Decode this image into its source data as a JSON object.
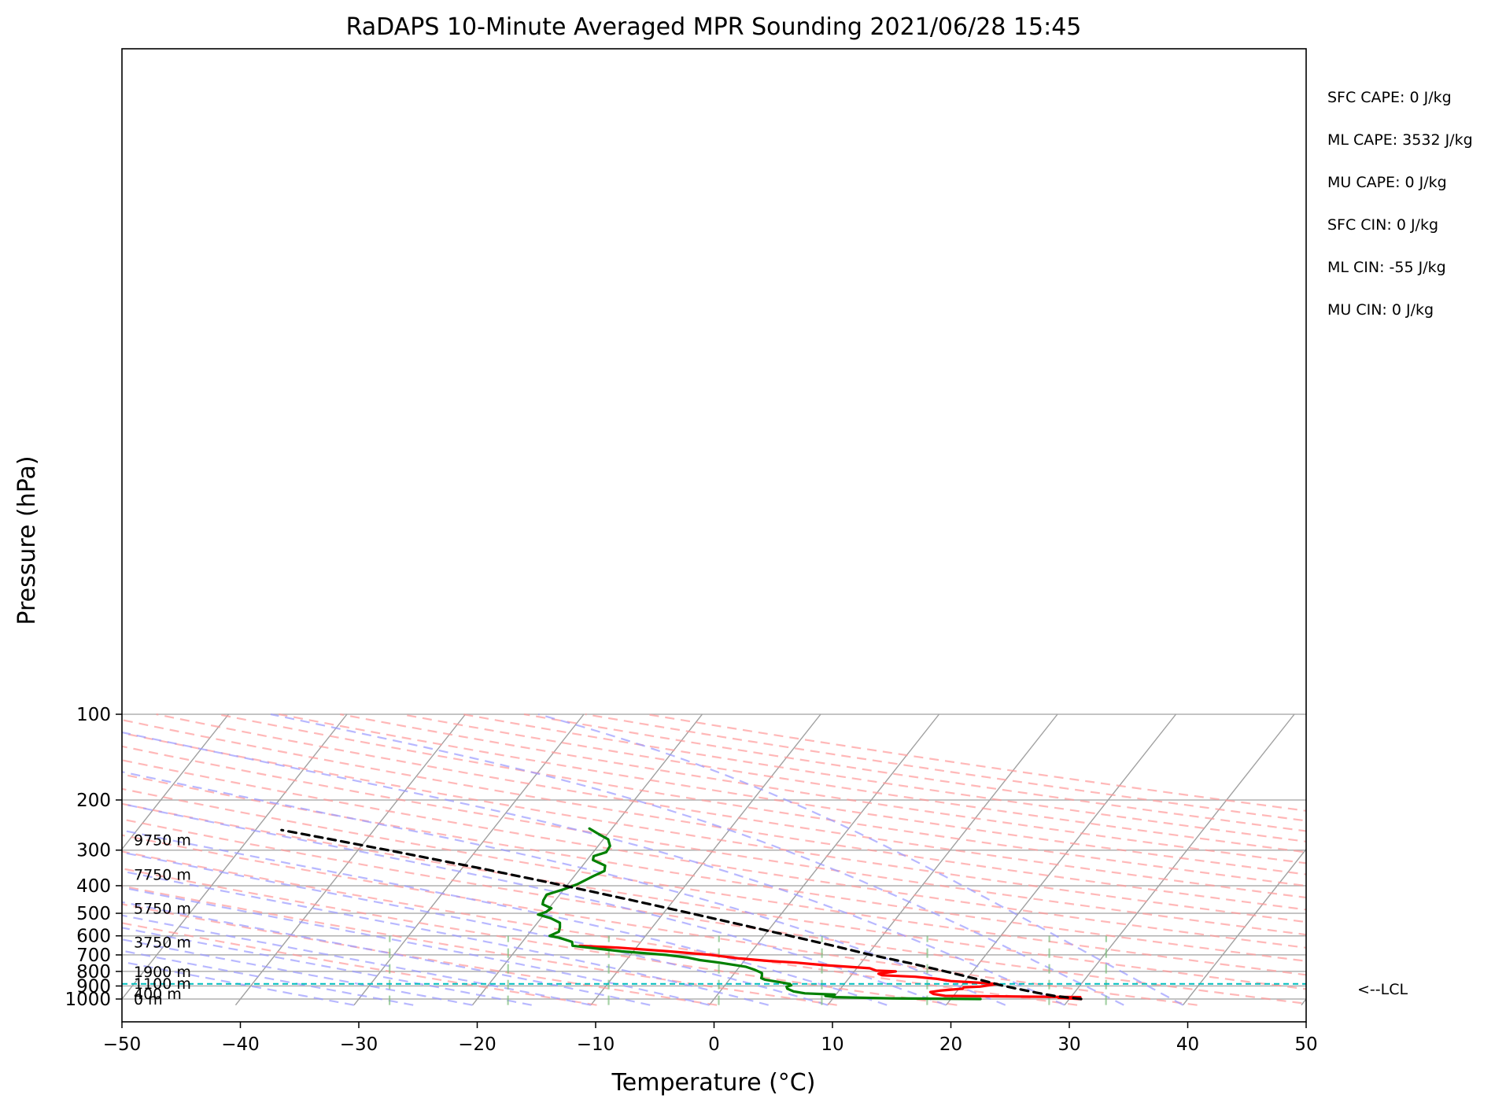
{
  "chart_data": {
    "type": "line",
    "subtype": "skew-t log-p sounding",
    "title": "RaDAPS 10-Minute Averaged MPR Sounding 2021/06/28 15:45",
    "xlabel": "Temperature (°C)",
    "ylabel": "Pressure (hPa)",
    "xlim": [
      -50,
      50
    ],
    "ylim": [
      1050,
      100
    ],
    "y_scale": "log",
    "x_ticks": [
      -50,
      -40,
      -30,
      -20,
      -10,
      0,
      10,
      20,
      30,
      40,
      50
    ],
    "x_tick_labels": [
      "−50",
      "−40",
      "−30",
      "−20",
      "−10",
      "0",
      "10",
      "20",
      "30",
      "40",
      "50"
    ],
    "y_ticks": [
      100,
      200,
      300,
      400,
      500,
      600,
      700,
      800,
      900,
      1000
    ],
    "y_tick_labels": [
      "100",
      "200",
      "300",
      "400",
      "500",
      "600",
      "700",
      "800",
      "900",
      "1000"
    ],
    "grid": true,
    "background_lines": {
      "isotherms": {
        "color": "#a0a0a0",
        "style": "solid"
      },
      "dry_adiabats": {
        "color": "#ff9a9a",
        "style": "dashed",
        "theta_K": [
          260,
          270,
          280,
          290,
          300,
          310,
          320,
          330,
          340,
          350,
          360,
          370,
          380,
          390,
          400,
          410,
          420,
          430,
          440,
          450,
          460,
          470,
          480
        ]
      },
      "moist_adiabats": {
        "color": "#9a9aff",
        "style": "dashed",
        "start_temps_C": [
          -30,
          -25,
          -20,
          -15,
          -10,
          -5,
          0,
          5,
          10,
          15,
          20,
          25,
          30,
          35,
          40
        ]
      },
      "mixing_ratio_lines": {
        "color": "#80c080",
        "style": "dashed",
        "top_hPa": 600
      }
    },
    "colors": {
      "temperature": "#ff0000",
      "dewpoint": "#008000",
      "parcel": "#000000",
      "lcl": "#00bfbf"
    },
    "series": [
      {
        "key": "temperature",
        "points": [
          [
            1000,
            31.0
          ],
          [
            990,
            29.0
          ],
          [
            985,
            30.8
          ],
          [
            975,
            19.3
          ],
          [
            960,
            18.2
          ],
          [
            945,
            17.8
          ],
          [
            935,
            18.5
          ],
          [
            920,
            20.3
          ],
          [
            910,
            20.3
          ],
          [
            905,
            21.6
          ],
          [
            895,
            22.3
          ],
          [
            885,
            22.9
          ],
          [
            875,
            21.0
          ],
          [
            865,
            18.8
          ],
          [
            850,
            17.5
          ],
          [
            835,
            15.5
          ],
          [
            825,
            12.6
          ],
          [
            815,
            12.2
          ],
          [
            808,
            12.8
          ],
          [
            800,
            13.5
          ],
          [
            795,
            11.8
          ],
          [
            780,
            11.1
          ],
          [
            760,
            7.0
          ],
          [
            745,
            4.5
          ],
          [
            735,
            2.1
          ],
          [
            720,
            -0.6
          ],
          [
            700,
            -3.2
          ],
          [
            680,
            -7.0
          ],
          [
            660,
            -11.5
          ],
          [
            650,
            -14.9
          ]
        ]
      },
      {
        "key": "dewpoint",
        "points": [
          [
            1000,
            22.5
          ],
          [
            995,
            15.0
          ],
          [
            985,
            10.1
          ],
          [
            975,
            9.2
          ],
          [
            965,
            9.9
          ],
          [
            955,
            7.3
          ],
          [
            940,
            6.2
          ],
          [
            920,
            5.5
          ],
          [
            905,
            5.3
          ],
          [
            895,
            5.6
          ],
          [
            885,
            5.4
          ],
          [
            870,
            4.2
          ],
          [
            855,
            3.0
          ],
          [
            845,
            2.6
          ],
          [
            830,
            2.5
          ],
          [
            810,
            2.3
          ],
          [
            790,
            1.5
          ],
          [
            770,
            0.5
          ],
          [
            745,
            -2.0
          ],
          [
            730,
            -3.8
          ],
          [
            715,
            -5.0
          ],
          [
            700,
            -7.0
          ],
          [
            680,
            -11.0
          ],
          [
            660,
            -14.0
          ],
          [
            650,
            -15.5
          ],
          [
            630,
            -15.8
          ],
          [
            610,
            -17.1
          ],
          [
            600,
            -18.1
          ],
          [
            580,
            -17.6
          ],
          [
            560,
            -17.8
          ],
          [
            540,
            -18.1
          ],
          [
            520,
            -19.2
          ],
          [
            505,
            -20.5
          ],
          [
            495,
            -20.0
          ],
          [
            480,
            -19.8
          ],
          [
            465,
            -20.8
          ],
          [
            450,
            -21.0
          ],
          [
            430,
            -21.1
          ],
          [
            410,
            -19.9
          ],
          [
            395,
            -19.2
          ],
          [
            370,
            -18.4
          ],
          [
            355,
            -17.8
          ],
          [
            340,
            -18.1
          ],
          [
            325,
            -19.5
          ],
          [
            315,
            -19.7
          ],
          [
            305,
            -18.9
          ],
          [
            290,
            -19.0
          ],
          [
            275,
            -19.6
          ],
          [
            262,
            -20.9
          ],
          [
            252,
            -21.9
          ]
        ]
      },
      {
        "key": "parcel",
        "points": [
          [
            1000,
            31.0
          ],
          [
            975,
            28.5
          ],
          [
            950,
            26.8
          ],
          [
            925,
            25.2
          ],
          [
            900,
            23.6
          ],
          [
            885,
            22.8
          ],
          [
            850,
            20.8
          ],
          [
            800,
            17.7
          ],
          [
            750,
            14.3
          ],
          [
            700,
            10.3
          ],
          [
            650,
            6.5
          ],
          [
            600,
            2.2
          ],
          [
            550,
            -2.5
          ],
          [
            500,
            -7.7
          ],
          [
            450,
            -13.5
          ],
          [
            400,
            -20.2
          ],
          [
            350,
            -28.0
          ],
          [
            300,
            -37.5
          ],
          [
            275,
            -43.0
          ],
          [
            255,
            -47.8
          ]
        ]
      }
    ],
    "lcl": {
      "pressure": 885,
      "label": "<--LCL"
    },
    "height_labels": [
      {
        "label": "0 m",
        "pressure": 1000
      },
      {
        "label": "400 m",
        "pressure": 955
      },
      {
        "label": "1100 m",
        "pressure": 880
      },
      {
        "label": "1900 m",
        "pressure": 800
      },
      {
        "label": "3750 m",
        "pressure": 630
      },
      {
        "label": "5750 m",
        "pressure": 480
      },
      {
        "label": "7750 m",
        "pressure": 365
      },
      {
        "label": "9750 m",
        "pressure": 276
      }
    ],
    "indices": [
      "SFC CAPE: 0 J/kg",
      "ML CAPE: 3532 J/kg",
      "MU CAPE: 0 J/kg",
      "SFC CIN: 0 J/kg",
      "ML CIN: -55 J/kg",
      "MU CIN: 0 J/kg"
    ]
  }
}
